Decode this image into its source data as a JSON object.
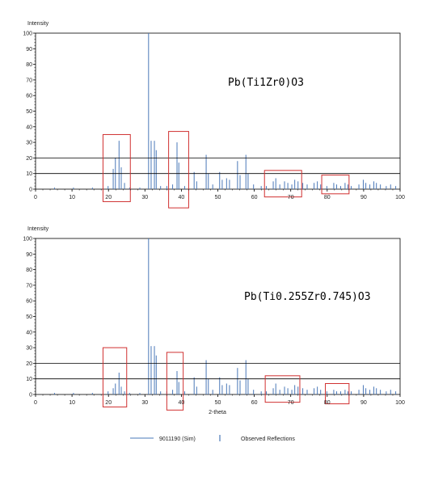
{
  "colors": {
    "peak": "#4a78b8",
    "box": "#d03030",
    "axis": "#000000",
    "refline": "#000000",
    "grid": "#999999"
  },
  "legend": {
    "items": [
      {
        "label": "9011190 (Sim)",
        "marker": "line"
      },
      {
        "label": "Observed Reflections",
        "marker": "bar"
      }
    ]
  },
  "chart_data": [
    {
      "type": "bar",
      "annotation": "Pb(Ti1Zr0)O3",
      "ylabel": "Intensity",
      "xlabel": "",
      "xlim": [
        0,
        100
      ],
      "ylim": [
        0,
        100
      ],
      "xticks": [
        0,
        10,
        20,
        30,
        40,
        50,
        60,
        70,
        80,
        90,
        100
      ],
      "yticks": [
        0,
        10,
        20,
        30,
        40,
        50,
        60,
        70,
        80,
        90,
        100
      ],
      "reference_lines": [
        10,
        20
      ],
      "peaks": [
        [
          5.2,
          1
        ],
        [
          10.4,
          1
        ],
        [
          15.6,
          1
        ],
        [
          19.9,
          2
        ],
        [
          21.3,
          13
        ],
        [
          21.9,
          20
        ],
        [
          22.9,
          31
        ],
        [
          23.5,
          14
        ],
        [
          24.4,
          4
        ],
        [
          25.8,
          1
        ],
        [
          28.6,
          1
        ],
        [
          31.0,
          100
        ],
        [
          31.7,
          31
        ],
        [
          32.6,
          31
        ],
        [
          33.1,
          25
        ],
        [
          34.3,
          2
        ],
        [
          36.0,
          2
        ],
        [
          37.6,
          3
        ],
        [
          38.8,
          30
        ],
        [
          39.3,
          17
        ],
        [
          40.9,
          2
        ],
        [
          43.5,
          11
        ],
        [
          44.2,
          5
        ],
        [
          46.8,
          22
        ],
        [
          47.4,
          10
        ],
        [
          48.6,
          3
        ],
        [
          50.5,
          11
        ],
        [
          51.2,
          6
        ],
        [
          52.4,
          7
        ],
        [
          53.2,
          6
        ],
        [
          55.4,
          18
        ],
        [
          56.1,
          9
        ],
        [
          57.7,
          22
        ],
        [
          58.3,
          10
        ],
        [
          59.8,
          3
        ],
        [
          61.9,
          2
        ],
        [
          63.3,
          2
        ],
        [
          65.2,
          5
        ],
        [
          65.9,
          7
        ],
        [
          67.0,
          3
        ],
        [
          68.3,
          5
        ],
        [
          69.2,
          4
        ],
        [
          70.3,
          3
        ],
        [
          71.1,
          6
        ],
        [
          72.0,
          5
        ],
        [
          73.3,
          4
        ],
        [
          74.5,
          3
        ],
        [
          76.4,
          4
        ],
        [
          77.3,
          5
        ],
        [
          78.2,
          3
        ],
        [
          79.9,
          2
        ],
        [
          81.8,
          4
        ],
        [
          82.6,
          3
        ],
        [
          83.7,
          2
        ],
        [
          84.9,
          4
        ],
        [
          85.7,
          3
        ],
        [
          86.6,
          2
        ],
        [
          88.7,
          3
        ],
        [
          89.9,
          6
        ],
        [
          90.6,
          4
        ],
        [
          91.7,
          3
        ],
        [
          92.8,
          5
        ],
        [
          93.5,
          4
        ],
        [
          94.6,
          3
        ],
        [
          96.2,
          2
        ],
        [
          97.4,
          3
        ],
        [
          98.8,
          2
        ]
      ],
      "highlight_boxes": [
        {
          "x": [
            18.5,
            26.0
          ],
          "y": [
            -8,
            35
          ]
        },
        {
          "x": [
            36.5,
            42.0
          ],
          "y": [
            -12,
            37
          ]
        },
        {
          "x": [
            62.8,
            73.0
          ],
          "y": [
            -5,
            12
          ]
        },
        {
          "x": [
            78.5,
            86.0
          ],
          "y": [
            -3,
            9
          ]
        }
      ]
    },
    {
      "type": "bar",
      "annotation": "Pb(Ti0.255Zr0.745)O3",
      "ylabel": "Intensity",
      "xlabel": "2-theta",
      "xlim": [
        0,
        100
      ],
      "ylim": [
        0,
        100
      ],
      "xticks": [
        0,
        10,
        20,
        30,
        40,
        50,
        60,
        70,
        80,
        90,
        100
      ],
      "yticks": [
        0,
        10,
        20,
        30,
        40,
        50,
        60,
        70,
        80,
        90,
        100
      ],
      "reference_lines": [
        10,
        20
      ],
      "peaks": [
        [
          5.2,
          1
        ],
        [
          10.4,
          1
        ],
        [
          15.6,
          1
        ],
        [
          19.9,
          2
        ],
        [
          21.3,
          4
        ],
        [
          21.9,
          7
        ],
        [
          22.9,
          14
        ],
        [
          23.5,
          5
        ],
        [
          24.4,
          2
        ],
        [
          25.8,
          1
        ],
        [
          28.6,
          1
        ],
        [
          31.0,
          100
        ],
        [
          31.7,
          31
        ],
        [
          32.6,
          31
        ],
        [
          33.1,
          25
        ],
        [
          34.3,
          2
        ],
        [
          36.0,
          2
        ],
        [
          37.6,
          3
        ],
        [
          38.8,
          15
        ],
        [
          39.3,
          8
        ],
        [
          40.9,
          2
        ],
        [
          43.5,
          11
        ],
        [
          44.2,
          5
        ],
        [
          46.8,
          22
        ],
        [
          47.4,
          10
        ],
        [
          48.6,
          3
        ],
        [
          50.5,
          11
        ],
        [
          51.2,
          6
        ],
        [
          52.4,
          7
        ],
        [
          53.2,
          6
        ],
        [
          55.4,
          17
        ],
        [
          56.1,
          9
        ],
        [
          57.7,
          22
        ],
        [
          58.3,
          10
        ],
        [
          59.8,
          3
        ],
        [
          61.9,
          2
        ],
        [
          63.3,
          2
        ],
        [
          65.2,
          4
        ],
        [
          65.9,
          7
        ],
        [
          67.0,
          3
        ],
        [
          68.3,
          5
        ],
        [
          69.2,
          4
        ],
        [
          70.3,
          3
        ],
        [
          71.1,
          6
        ],
        [
          72.0,
          5
        ],
        [
          73.3,
          4
        ],
        [
          74.5,
          3
        ],
        [
          76.4,
          4
        ],
        [
          77.3,
          5
        ],
        [
          78.2,
          3
        ],
        [
          79.9,
          2
        ],
        [
          81.8,
          3
        ],
        [
          82.6,
          2
        ],
        [
          83.7,
          2
        ],
        [
          84.9,
          3
        ],
        [
          85.7,
          2
        ],
        [
          86.6,
          2
        ],
        [
          88.7,
          3
        ],
        [
          89.9,
          6
        ],
        [
          90.6,
          4
        ],
        [
          91.7,
          3
        ],
        [
          92.8,
          5
        ],
        [
          93.5,
          4
        ],
        [
          94.6,
          3
        ],
        [
          96.2,
          2
        ],
        [
          97.4,
          3
        ],
        [
          98.8,
          2
        ]
      ],
      "highlight_boxes": [
        {
          "x": [
            18.5,
            25.0
          ],
          "y": [
            -8,
            30
          ]
        },
        {
          "x": [
            36.0,
            40.5
          ],
          "y": [
            -10,
            27
          ]
        },
        {
          "x": [
            63.0,
            72.5
          ],
          "y": [
            -5,
            12
          ]
        },
        {
          "x": [
            79.5,
            86.0
          ],
          "y": [
            -6,
            7
          ]
        }
      ]
    }
  ]
}
